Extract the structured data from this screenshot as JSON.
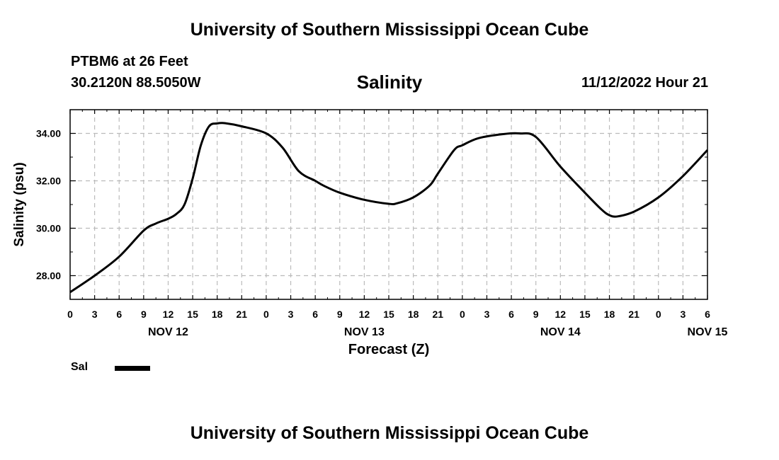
{
  "header": {
    "title": "University of Southern Mississippi Ocean Cube",
    "station": "PTBM6 at 26 Feet",
    "coordinates": "30.2120N  88.5050W",
    "datetime": "11/12/2022 Hour 21"
  },
  "footer": {
    "title": "University of Southern Mississippi Ocean Cube"
  },
  "chart_data": {
    "type": "line",
    "title": "Salinity",
    "xlabel": "Forecast (Z)",
    "ylabel": "Salinity (psu)",
    "xlim": [
      0,
      78
    ],
    "ylim": [
      27.0,
      35.0
    ],
    "grid": true,
    "x_tick_hours": [
      0,
      3,
      6,
      9,
      12,
      15,
      18,
      21,
      24,
      27,
      30,
      33,
      36,
      39,
      42,
      45,
      48,
      51,
      54,
      57,
      60,
      63,
      66,
      69,
      72,
      75,
      78
    ],
    "x_tick_labels": [
      "0",
      "3",
      "6",
      "9",
      "12",
      "15",
      "18",
      "21",
      "0",
      "3",
      "6",
      "9",
      "12",
      "15",
      "18",
      "21",
      "0",
      "3",
      "6",
      "9",
      "12",
      "15",
      "18",
      "21",
      "0",
      "3",
      "6"
    ],
    "day_labels": [
      {
        "hour": 12,
        "label": "NOV 12"
      },
      {
        "hour": 36,
        "label": "NOV 13"
      },
      {
        "hour": 60,
        "label": "NOV 14"
      },
      {
        "hour": 78,
        "label": "NOV 15"
      }
    ],
    "y_ticks": [
      28.0,
      30.0,
      32.0,
      34.0
    ],
    "y_tick_labels": [
      "28.00",
      "30.00",
      "32.00",
      "34.00"
    ],
    "series": [
      {
        "name": "Sal",
        "x": [
          0,
          3,
          6,
          9,
          10.5,
          12,
          13,
          14,
          15,
          16,
          17,
          18,
          19,
          21,
          24,
          26,
          28,
          30,
          31,
          33,
          36,
          39,
          40,
          42,
          44,
          45,
          47,
          48,
          50,
          53,
          55,
          57,
          60,
          63,
          65,
          66,
          67,
          69,
          72,
          75,
          78
        ],
        "values": [
          27.3,
          28.0,
          28.8,
          29.9,
          30.2,
          30.4,
          30.6,
          31.0,
          32.1,
          33.5,
          34.3,
          34.42,
          34.43,
          34.3,
          34.0,
          33.4,
          32.4,
          32.0,
          31.8,
          31.5,
          31.2,
          31.03,
          31.05,
          31.3,
          31.8,
          32.3,
          33.3,
          33.5,
          33.8,
          33.97,
          34.0,
          33.85,
          32.6,
          31.5,
          30.8,
          30.55,
          30.5,
          30.7,
          31.3,
          32.2,
          33.3
        ]
      }
    ],
    "legend": {
      "label": "Sal",
      "position": "bottom-left"
    }
  }
}
